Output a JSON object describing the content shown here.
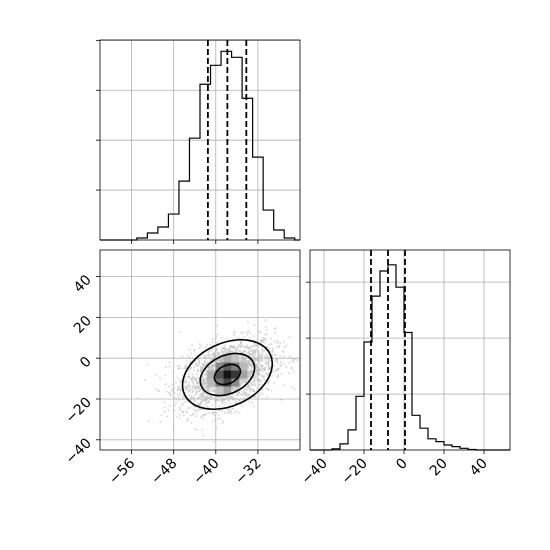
{
  "chart_data": [
    {
      "type": "histogram",
      "panel": "top-left",
      "xlim": [
        -62,
        -24
      ],
      "x_ticks": [
        -56,
        -48,
        -40,
        -32
      ],
      "bin_edges": [
        -55,
        -53,
        -51,
        -49,
        -47,
        -45,
        -43,
        -41,
        -39,
        -37,
        -35,
        -33,
        -31,
        -29,
        -27,
        -25
      ],
      "counts": [
        2,
        7,
        13,
        26,
        59,
        102,
        156,
        175,
        189,
        183,
        142,
        83,
        30,
        10,
        2
      ],
      "quantile_lines": [
        -41.5,
        -37.8,
        -34.2
      ],
      "grid": true
    },
    {
      "type": "histogram",
      "panel": "bottom-right",
      "xlim": [
        -47,
        53
      ],
      "x_ticks": [
        -40,
        -20,
        0,
        20,
        40
      ],
      "x_tick_labels": [
        "−40",
        "−20",
        "0",
        "20",
        "40"
      ],
      "bin_edges": [
        -36,
        -32,
        -28,
        -24,
        -20,
        -16,
        -12,
        -8,
        -4,
        0,
        4,
        8,
        12,
        16,
        20,
        24,
        28,
        32,
        36
      ],
      "counts": [
        2,
        11,
        36,
        96,
        193,
        275,
        320,
        331,
        291,
        210,
        62,
        39,
        20,
        15,
        9,
        6,
        3,
        1
      ],
      "quantile_lines": [
        -16.5,
        -8.0,
        0.5
      ],
      "grid": true
    },
    {
      "type": "scatter",
      "panel": "bottom-left",
      "xlim": [
        -62,
        -24
      ],
      "ylim": [
        -45,
        53
      ],
      "x_ticks": [
        -56,
        -48,
        -40,
        -32
      ],
      "x_tick_labels": [
        "−56",
        "−48",
        "−40",
        "−32"
      ],
      "y_ticks": [
        -40,
        -20,
        0,
        20,
        40
      ],
      "y_tick_labels": [
        "−40",
        "−20",
        "0",
        "20",
        "40"
      ],
      "mean": [
        -37.8,
        -8.0
      ],
      "std": [
        4.5,
        8.5
      ],
      "correlation": 0.4,
      "n_points": 2200,
      "contour_levels": [
        "inner",
        "middle",
        "outer"
      ],
      "grid": true
    }
  ],
  "colors": {
    "line": "#000000",
    "scatter": "#bdbdbd",
    "grid": "#b0b0b0"
  }
}
